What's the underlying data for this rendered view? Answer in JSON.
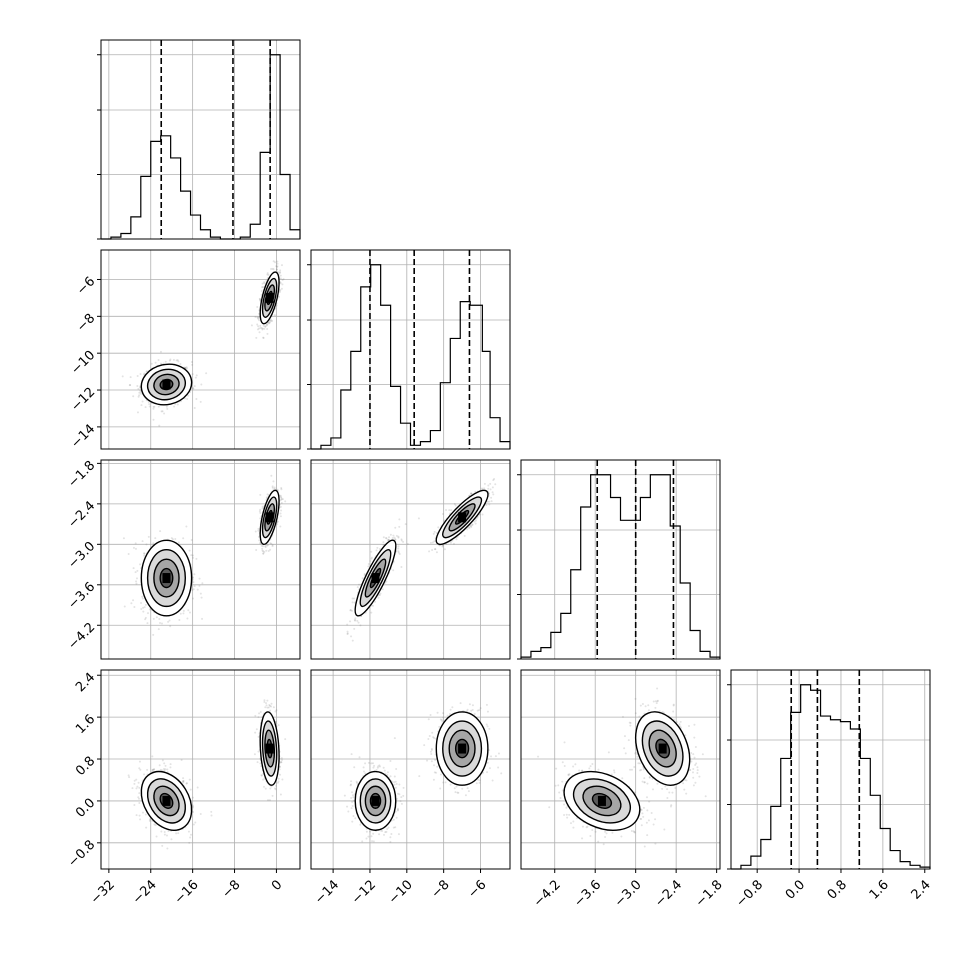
{
  "chart_data": {
    "type": "corner",
    "title": "",
    "parameters": [
      {
        "label": "",
        "range": [
          -33.5,
          4.5
        ],
        "ticks": [
          -32,
          -24,
          -16,
          -8,
          0
        ],
        "quantiles": [
          -22.0,
          -8.3,
          -1.2
        ],
        "modes": [
          {
            "mean": -21.0,
            "sd": 2.4,
            "weight": 0.5
          },
          {
            "mean": -1.3,
            "sd": 0.9,
            "weight": 0.5
          }
        ],
        "histogram": {
          "bin_edges": [
            -33.5,
            -31.6,
            -29.7,
            -27.8,
            -25.9,
            -24.0,
            -22.1,
            -20.2,
            -18.3,
            -16.4,
            -14.5,
            -12.6,
            -10.7,
            -8.8,
            -6.9,
            -5.0,
            -3.1,
            -1.2,
            0.7,
            2.6,
            4.5
          ],
          "counts": [
            0.0,
            0.01,
            0.03,
            0.12,
            0.34,
            0.53,
            0.56,
            0.44,
            0.26,
            0.13,
            0.05,
            0.01,
            0.0,
            0.0,
            0.01,
            0.08,
            0.47,
            1.0,
            0.35,
            0.05
          ]
        }
      },
      {
        "label": "",
        "range": [
          -15.2,
          -4.4
        ],
        "ticks": [
          -14,
          -12,
          -10,
          -8,
          -6
        ],
        "quantiles": [
          -12.0,
          -9.6,
          -6.6
        ],
        "modes": [
          {
            "mean": -11.7,
            "sd": 0.55,
            "weight": 0.5
          },
          {
            "mean": -7.0,
            "sd": 0.7,
            "weight": 0.5
          }
        ],
        "histogram": {
          "bin_edges": [
            -15.2,
            -14.66,
            -14.12,
            -13.58,
            -13.04,
            -12.5,
            -11.96,
            -11.42,
            -10.88,
            -10.34,
            -9.8,
            -9.26,
            -8.72,
            -8.18,
            -7.64,
            -7.1,
            -6.56,
            -5.9,
            -5.48,
            -4.94,
            -4.4
          ],
          "counts": [
            0.0,
            0.02,
            0.06,
            0.32,
            0.53,
            0.88,
            1.0,
            0.78,
            0.34,
            0.14,
            0.02,
            0.04,
            0.1,
            0.36,
            0.6,
            0.8,
            0.78,
            0.53,
            0.17,
            0.04
          ]
        }
      },
      {
        "label": "",
        "range": [
          -4.7,
          -1.75
        ],
        "ticks": [
          -4.2,
          -3.6,
          -3.0,
          -2.4,
          -1.8
        ],
        "quantiles": [
          -3.57,
          -3.0,
          -2.44
        ],
        "modes": [
          {
            "mean": -3.5,
            "sd": 0.28,
            "weight": 0.5
          },
          {
            "mean": -2.6,
            "sd": 0.2,
            "weight": 0.5
          }
        ],
        "histogram": {
          "bin_edges": [
            -4.7,
            -4.5525,
            -4.405,
            -4.2575,
            -4.11,
            -3.9625,
            -3.815,
            -3.6675,
            -3.52,
            -3.3725,
            -3.225,
            -3.0775,
            -2.93,
            -2.7825,
            -2.635,
            -2.4875,
            -2.34,
            -2.1925,
            -2.045,
            -1.8975,
            -1.75
          ],
          "counts": [
            0.01,
            0.04,
            0.06,
            0.14,
            0.24,
            0.47,
            0.8,
            0.97,
            0.97,
            0.85,
            0.73,
            0.73,
            0.85,
            0.97,
            0.97,
            0.7,
            0.4,
            0.15,
            0.04,
            0.01
          ]
        }
      },
      {
        "label": "",
        "range": [
          -1.3,
          2.5
        ],
        "ticks": [
          -0.8,
          0.0,
          0.8,
          1.6,
          2.4
        ],
        "quantiles": [
          -0.15,
          0.35,
          1.15
        ],
        "modes": [
          {
            "mean": 0.0,
            "sd": 0.28,
            "weight": 0.5
          },
          {
            "mean": 1.0,
            "sd": 0.35,
            "weight": 0.5
          }
        ],
        "histogram": {
          "bin_edges": [
            -1.3,
            -1.11,
            -0.92,
            -0.73,
            -0.54,
            -0.35,
            -0.16,
            0.03,
            0.22,
            0.41,
            0.6,
            0.79,
            0.98,
            1.17,
            1.36,
            1.55,
            1.74,
            1.93,
            2.12,
            2.31,
            2.5
          ],
          "counts": [
            0.0,
            0.02,
            0.07,
            0.16,
            0.34,
            0.6,
            0.85,
            1.0,
            0.97,
            0.83,
            0.81,
            0.8,
            0.76,
            0.6,
            0.4,
            0.22,
            0.1,
            0.04,
            0.02,
            0.01
          ]
        }
      }
    ],
    "mode_correlations": {
      "1-0": [
        0.1,
        0.6
      ],
      "2-0": [
        0.0,
        0.6
      ],
      "2-1": [
        0.85,
        0.85
      ],
      "3-0": [
        -0.3,
        -0.2
      ],
      "3-1": [
        0.0,
        0.0
      ],
      "3-2": [
        -0.3,
        -0.3
      ]
    },
    "grid": true,
    "contour_levels": 4,
    "scatter_color": "#808080",
    "line_color": "#000000"
  }
}
